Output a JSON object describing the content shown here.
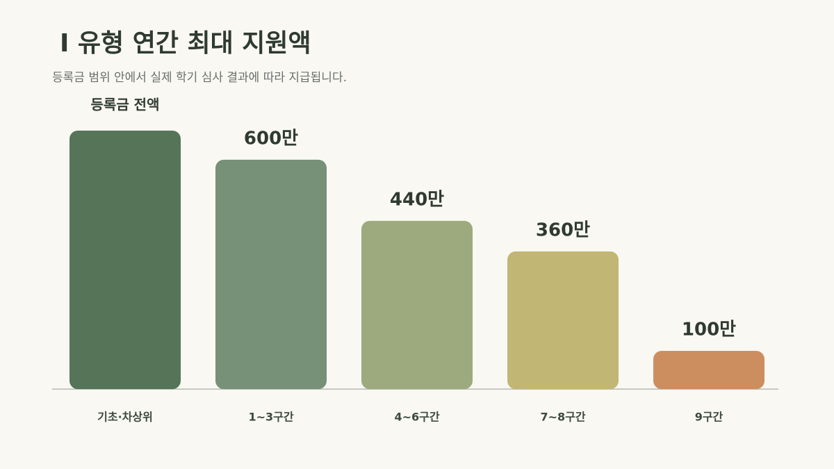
{
  "chart_data": {
    "type": "bar",
    "title": "I 유형 연간 최대 지원액",
    "subtitle": "등록금 범위 안에서 실제 학기 심사 결과에 따라 지급됩니다.",
    "categories": [
      "기초·차상위",
      "1~3구간",
      "4~6구간",
      "7~8구간",
      "9구간"
    ],
    "values": [
      676,
      600,
      440,
      360,
      100
    ],
    "value_labels": [
      "등록금 전액",
      "600만",
      "440만",
      "360만",
      "100만"
    ],
    "colors": [
      "#557458",
      "#779078",
      "#9caa7e",
      "#c1b673",
      "#cc8e5f"
    ]
  }
}
